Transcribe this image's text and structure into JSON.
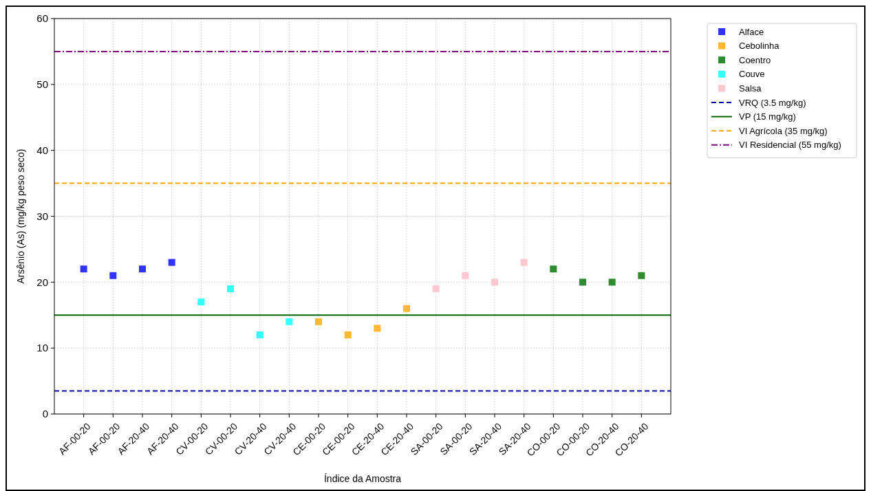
{
  "chart_data": {
    "type": "scatter",
    "xlabel": "Índice da Amostra",
    "ylabel": "Arsênio (As) (mg/kg peso seco)",
    "categories": [
      "AF-00-20",
      "AF-00-20",
      "AF-20-40",
      "AF-20-40",
      "CV-00-20",
      "CV-00-20",
      "CV-20-40",
      "CV-20-40",
      "CE-00-20",
      "CE-00-20",
      "CE-20-40",
      "CE-20-40",
      "SA-00-20",
      "SA-00-20",
      "SA-20-40",
      "SA-20-40",
      "CO-00-20",
      "CO-00-20",
      "CO-20-40",
      "CO-20-40"
    ],
    "series": [
      {
        "name": "Alface",
        "color": "#3333ff",
        "values": [
          22,
          21,
          22,
          23,
          null,
          null,
          null,
          null,
          null,
          null,
          null,
          null,
          null,
          null,
          null,
          null,
          null,
          null,
          null,
          null
        ]
      },
      {
        "name": "Cebolinha",
        "color": "#ffb833",
        "values": [
          null,
          null,
          null,
          null,
          null,
          null,
          null,
          null,
          14,
          12,
          13,
          16,
          null,
          null,
          null,
          null,
          null,
          null,
          null,
          null
        ]
      },
      {
        "name": "Coentro",
        "color": "#2e8b2e",
        "values": [
          null,
          null,
          null,
          null,
          null,
          null,
          null,
          null,
          null,
          null,
          null,
          null,
          null,
          null,
          null,
          null,
          22,
          20,
          20,
          21
        ]
      },
      {
        "name": "Couve",
        "color": "#33ffff",
        "values": [
          null,
          null,
          null,
          null,
          17,
          19,
          12,
          14,
          null,
          null,
          null,
          null,
          null,
          null,
          null,
          null,
          null,
          null,
          null,
          null
        ]
      },
      {
        "name": "Salsa",
        "color": "#ffc8d0",
        "values": [
          null,
          null,
          null,
          null,
          null,
          null,
          null,
          null,
          null,
          null,
          null,
          null,
          19,
          21,
          20,
          23,
          null,
          null,
          null,
          null
        ]
      }
    ],
    "ref_lines": [
      {
        "axis": "y",
        "value": 3.5,
        "label": "VRQ (3.5 mg/kg)",
        "color": "#0000aa",
        "line_style": "dashed"
      },
      {
        "axis": "y",
        "value": 15,
        "label": "VP (15 mg/kg)",
        "color": "#006400",
        "line_style": "solid"
      },
      {
        "axis": "y",
        "value": 35,
        "label": "VI Agrícola (35 mg/kg)",
        "color": "#ffa500",
        "line_style": "dashed"
      },
      {
        "axis": "y",
        "value": 55,
        "label": "VI Residencial (55 mg/kg)",
        "color": "#800080",
        "line_style": "dashdot"
      }
    ],
    "ylim": [
      0,
      60
    ],
    "yticks": [
      0,
      10,
      20,
      30,
      40,
      50,
      60
    ],
    "grid": true,
    "legend": "top right",
    "marker": "square"
  }
}
